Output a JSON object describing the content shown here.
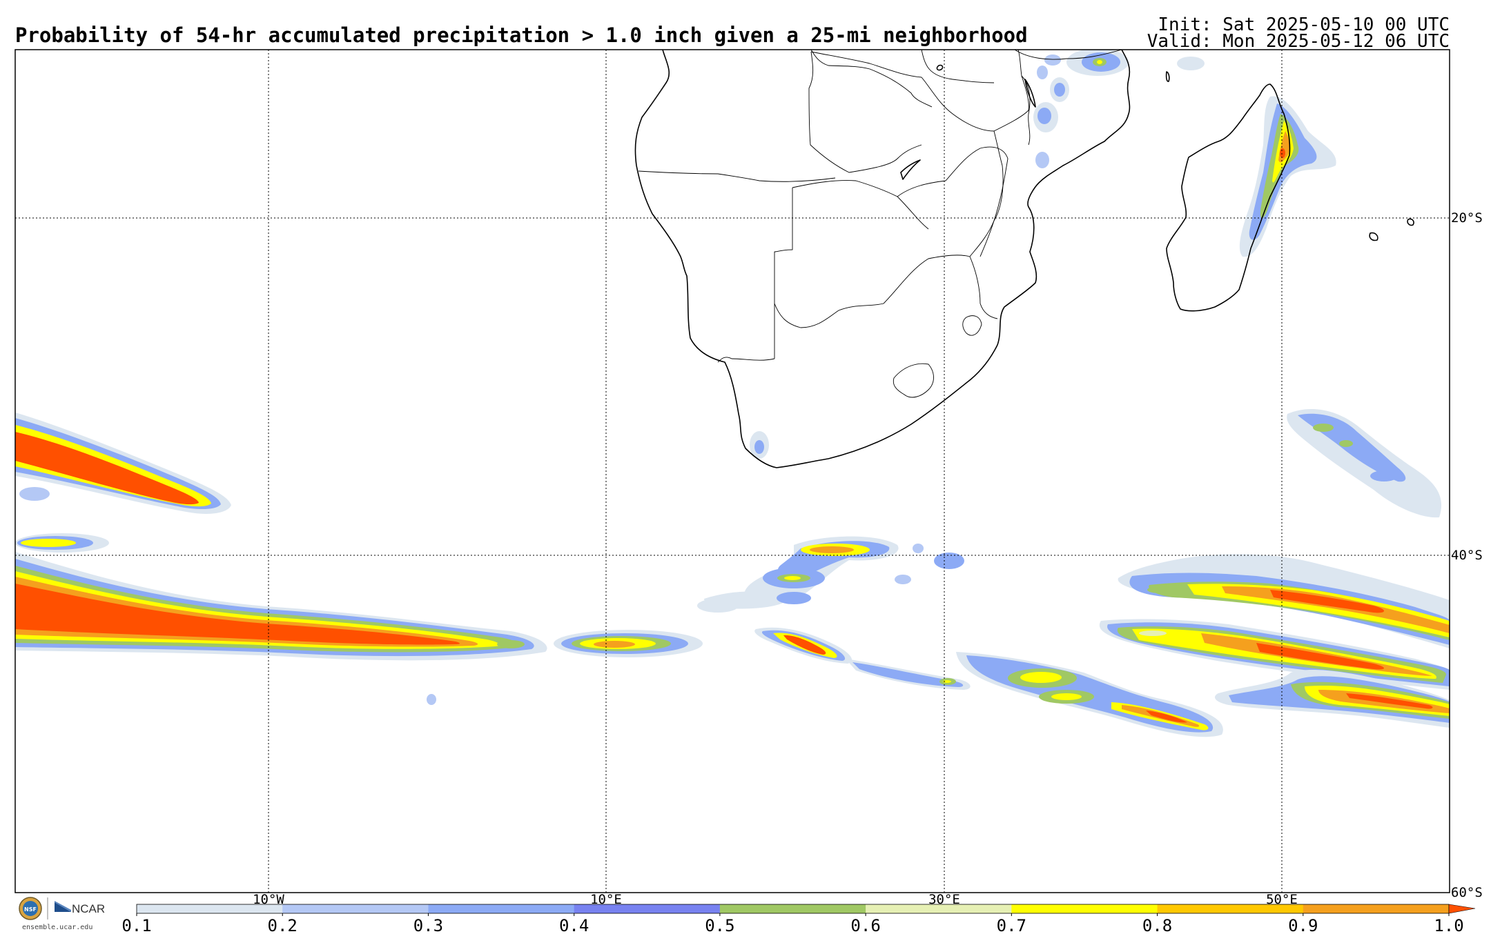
{
  "title": "Probability of 54-hr accumulated precipitation > 1.0 inch given a 25-mi neighborhood",
  "init_text": "Init: Sat 2025-05-10 00 UTC",
  "valid_text": "Valid: Mon 2025-05-12 06 UTC",
  "lat_labels": [
    "20°S",
    "40°S",
    "60°S"
  ],
  "lon_labels": [
    "10°W",
    "10°E",
    "30°E",
    "50°E"
  ],
  "colorbar": {
    "ticks": [
      "0.1",
      "0.2",
      "0.3",
      "0.4",
      "0.5",
      "0.6",
      "0.7",
      "0.8",
      "0.9",
      "1.0"
    ],
    "colors": [
      "#dce6f0",
      "#b4c8f5",
      "#8caaf5",
      "#7882f0",
      "#a0c864",
      "#e6f0b4",
      "#ffff00",
      "#ffc800",
      "#f5a01e"
    ],
    "extend_color": "#ff5000"
  },
  "logo": {
    "nsf": "NSF",
    "ncar": "NCAR",
    "url": "ensemble.ucar.edu"
  },
  "palette": {
    "p01": "#dce6f0",
    "p02": "#b4c8f5",
    "p03": "#8caaf5",
    "p04": "#7882f0",
    "p05": "#a0c864",
    "p06": "#e6f0b4",
    "p07": "#ffff00",
    "p08": "#ffc800",
    "p09": "#f5a01e",
    "p10": "#ff5000"
  }
}
